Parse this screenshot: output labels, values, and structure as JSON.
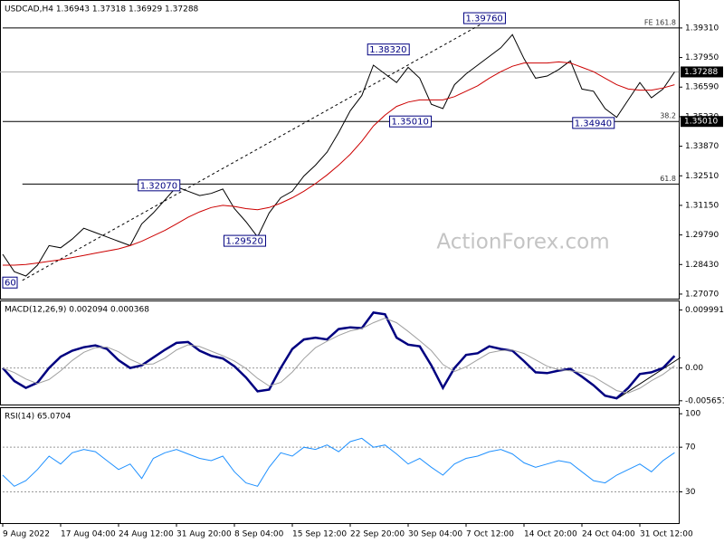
{
  "watermark": "ActionForex.com",
  "chart_data": [
    {
      "type": "line",
      "title": "USDCAD,H4 1.36943 1.37318 1.36929 1.37288",
      "ylim": [
        1.2686,
        1.3993
      ],
      "yticks": [
        {
          "value": 1.2707,
          "label": "1.27070"
        },
        {
          "value": 1.2843,
          "label": "1.28430"
        },
        {
          "value": 1.2979,
          "label": "1.29790"
        },
        {
          "value": 1.3115,
          "label": "1.31150"
        },
        {
          "value": 1.3251,
          "label": "1.32510"
        },
        {
          "value": 1.3387,
          "label": "1.33870"
        },
        {
          "value": 1.3523,
          "label": "1.35230"
        },
        {
          "value": 1.3659,
          "label": "1.36590"
        },
        {
          "value": 1.3795,
          "label": "1.37950"
        },
        {
          "value": 1.3931,
          "label": "1.39310"
        }
      ],
      "series": [
        {
          "color": "#000000",
          "values": [
            1.289,
            1.281,
            1.279,
            1.284,
            1.293,
            1.292,
            1.296,
            1.301,
            1.299,
            1.297,
            1.295,
            1.293,
            1.303,
            1.308,
            1.314,
            1.32,
            1.318,
            1.316,
            1.317,
            1.319,
            1.31,
            1.304,
            1.297,
            1.308,
            1.315,
            1.318,
            1.325,
            1.33,
            1.336,
            1.345,
            1.355,
            1.362,
            1.376,
            1.372,
            1.368,
            1.375,
            1.37,
            1.358,
            1.356,
            1.367,
            1.372,
            1.376,
            1.38,
            1.384,
            1.39,
            1.379,
            1.37,
            1.371,
            1.374,
            1.378,
            1.365,
            1.364,
            1.356,
            1.352,
            1.36,
            1.368,
            1.361,
            1.365,
            1.37288
          ]
        },
        {
          "color": "#cc0000",
          "values": [
            1.284,
            1.284,
            1.2843,
            1.285,
            1.2858,
            1.2865,
            1.2875,
            1.2885,
            1.2895,
            1.2905,
            1.2915,
            1.293,
            1.295,
            1.2975,
            1.3,
            1.303,
            1.306,
            1.3085,
            1.3105,
            1.3115,
            1.311,
            1.31,
            1.3095,
            1.3105,
            1.3125,
            1.315,
            1.318,
            1.3215,
            1.3255,
            1.33,
            1.335,
            1.341,
            1.348,
            1.353,
            1.357,
            1.359,
            1.36,
            1.36,
            1.36,
            1.3615,
            1.364,
            1.3665,
            1.37,
            1.373,
            1.3755,
            1.377,
            1.377,
            1.377,
            1.3775,
            1.377,
            1.375,
            1.373,
            1.37,
            1.367,
            1.365,
            1.3645,
            1.3645,
            1.3655,
            1.367
          ]
        }
      ],
      "trendline": {
        "x": [
          1.7,
          42.7
        ],
        "values": [
          1.277,
          1.399
        ]
      },
      "levels": [
        {
          "value": 1.3931,
          "label": "FE 161.8",
          "x0": 0
        },
        {
          "value": 1.3501,
          "label": "38.2",
          "x0": 0
        },
        {
          "value": 1.3213,
          "label": "61.8",
          "x0": 1.7
        }
      ],
      "annotations": [
        {
          "x": 39.8,
          "value": 1.3976,
          "label": "1.39760"
        },
        {
          "x": 31.5,
          "value": 1.3832,
          "label": "1.38320"
        },
        {
          "x": 33.4,
          "value": 1.3501,
          "label": "1.35010"
        },
        {
          "x": 49.2,
          "value": 1.3494,
          "label": "1.34940"
        },
        {
          "x": 11.7,
          "value": 1.3207,
          "label": "1.32070"
        },
        {
          "x": 19.1,
          "value": 1.2952,
          "label": "1.29520"
        },
        {
          "x": 0,
          "value": 1.276,
          "label": "60"
        }
      ],
      "price_labels": [
        {
          "value": 1.37288,
          "label": "1.37288"
        },
        {
          "value": 1.3501,
          "label": "1.35010"
        }
      ]
    },
    {
      "type": "line",
      "title": "MACD(12,26,9) 0.002094 0.000368",
      "ylim": [
        -0.0063,
        0.0107
      ],
      "yticks": [
        0.009991,
        {
          "value": 0,
          "label": "0.00"
        },
        -0.005651
      ],
      "series": [
        {
          "color": "#000080",
          "values": [
            0,
            -0.00224,
            -0.00343,
            -0.00253,
            0,
            0.00194,
            0.00298,
            0.00358,
            0.00388,
            0.00328,
            0.00134,
            0,
            0.00045,
            0.00179,
            0.00313,
            0.00432,
            0.00447,
            0.00298,
            0.00209,
            0.00164,
            0.0003,
            -0.00164,
            -0.00403,
            -0.00373,
            0,
            0.00328,
            0.00492,
            0.00522,
            0.00492,
            0.00671,
            0.00701,
            0.00686,
            0.00954,
            0.00925,
            0.00522,
            0.00403,
            0.00373,
            0.00045,
            -0.00343,
            0,
            0.00224,
            0.00254,
            0.00373,
            0.00328,
            0.00298,
            0.00119,
            -0.00075,
            -0.00089,
            -0.00045,
            -0.00015,
            -0.00149,
            -0.00298,
            -0.00477,
            -0.00522,
            -0.00343,
            -0.00104,
            -0.00075,
            0,
            0.002094
          ]
        },
        {
          "color": "#a0a0a0",
          "values": [
            0,
            -0.0008,
            -0.0019,
            -0.0027,
            -0.002,
            -0.0005,
            0.0013,
            0.0027,
            0.0035,
            0.0036,
            0.0028,
            0.0015,
            0.0006,
            0.0007,
            0.0017,
            0.0031,
            0.004,
            0.0037,
            0.0029,
            0.0021,
            0.0012,
            -0.0001,
            -0.0018,
            -0.0031,
            -0.0025,
            -0.0007,
            0.0016,
            0.0035,
            0.0046,
            0.0056,
            0.0064,
            0.0068,
            0.0078,
            0.0086,
            0.0078,
            0.0063,
            0.0047,
            0.003,
            0.0006,
            -0.0006,
            0.0002,
            0.0014,
            0.0026,
            0.003,
            0.0031,
            0.0025,
            0.0014,
            0.0003,
            -0.0003,
            -0.0005,
            -0.0008,
            -0.0015,
            -0.0027,
            -0.0039,
            -0.0043,
            -0.0035,
            -0.0022,
            -0.0011,
            0.000368
          ]
        }
      ],
      "trendline": {
        "x": [
          53.1,
          58.5
        ],
        "values": [
          -0.00522,
          0.00179
        ]
      },
      "levels": [
        {
          "value": 0,
          "x0": 0
        }
      ]
    },
    {
      "type": "line",
      "title": "RSI(14) 65.0704",
      "ylim": [
        2,
        105
      ],
      "yticks": [
        100,
        70,
        30
      ],
      "series": [
        {
          "color": "#1e90ff",
          "values": [
            45,
            35,
            40,
            50,
            62,
            55,
            65,
            68,
            66,
            58,
            50,
            55,
            42,
            60,
            65,
            68,
            64,
            60,
            58,
            62,
            48,
            38,
            35,
            52,
            65,
            62,
            70,
            68,
            72,
            66,
            75,
            78,
            70,
            72,
            64,
            55,
            60,
            52,
            45,
            55,
            60,
            62,
            66,
            68,
            64,
            56,
            52,
            55,
            58,
            56,
            48,
            40,
            38,
            45,
            50,
            55,
            48,
            58,
            65.0704
          ]
        }
      ],
      "levels": [
        {
          "value": 70,
          "x0": 0
        },
        {
          "value": 30,
          "x0": 0
        }
      ],
      "categories": [
        "9 Aug 2022",
        null,
        null,
        null,
        null,
        "17 Aug 04:00",
        null,
        null,
        null,
        null,
        "24 Aug 12:00",
        null,
        null,
        null,
        null,
        "31 Aug 20:00",
        null,
        null,
        null,
        null,
        "8 Sep 04:00",
        null,
        null,
        null,
        null,
        "15 Sep 12:00",
        null,
        null,
        null,
        null,
        "22 Sep 20:00",
        null,
        null,
        null,
        null,
        "30 Sep 04:00",
        null,
        null,
        null,
        null,
        "7 Oct 12:00",
        null,
        null,
        null,
        null,
        "14 Oct 20:00",
        null,
        null,
        null,
        null,
        "24 Oct 04:00",
        null,
        null,
        null,
        null,
        "31 Oct 12:00",
        null,
        null,
        null
      ]
    }
  ]
}
